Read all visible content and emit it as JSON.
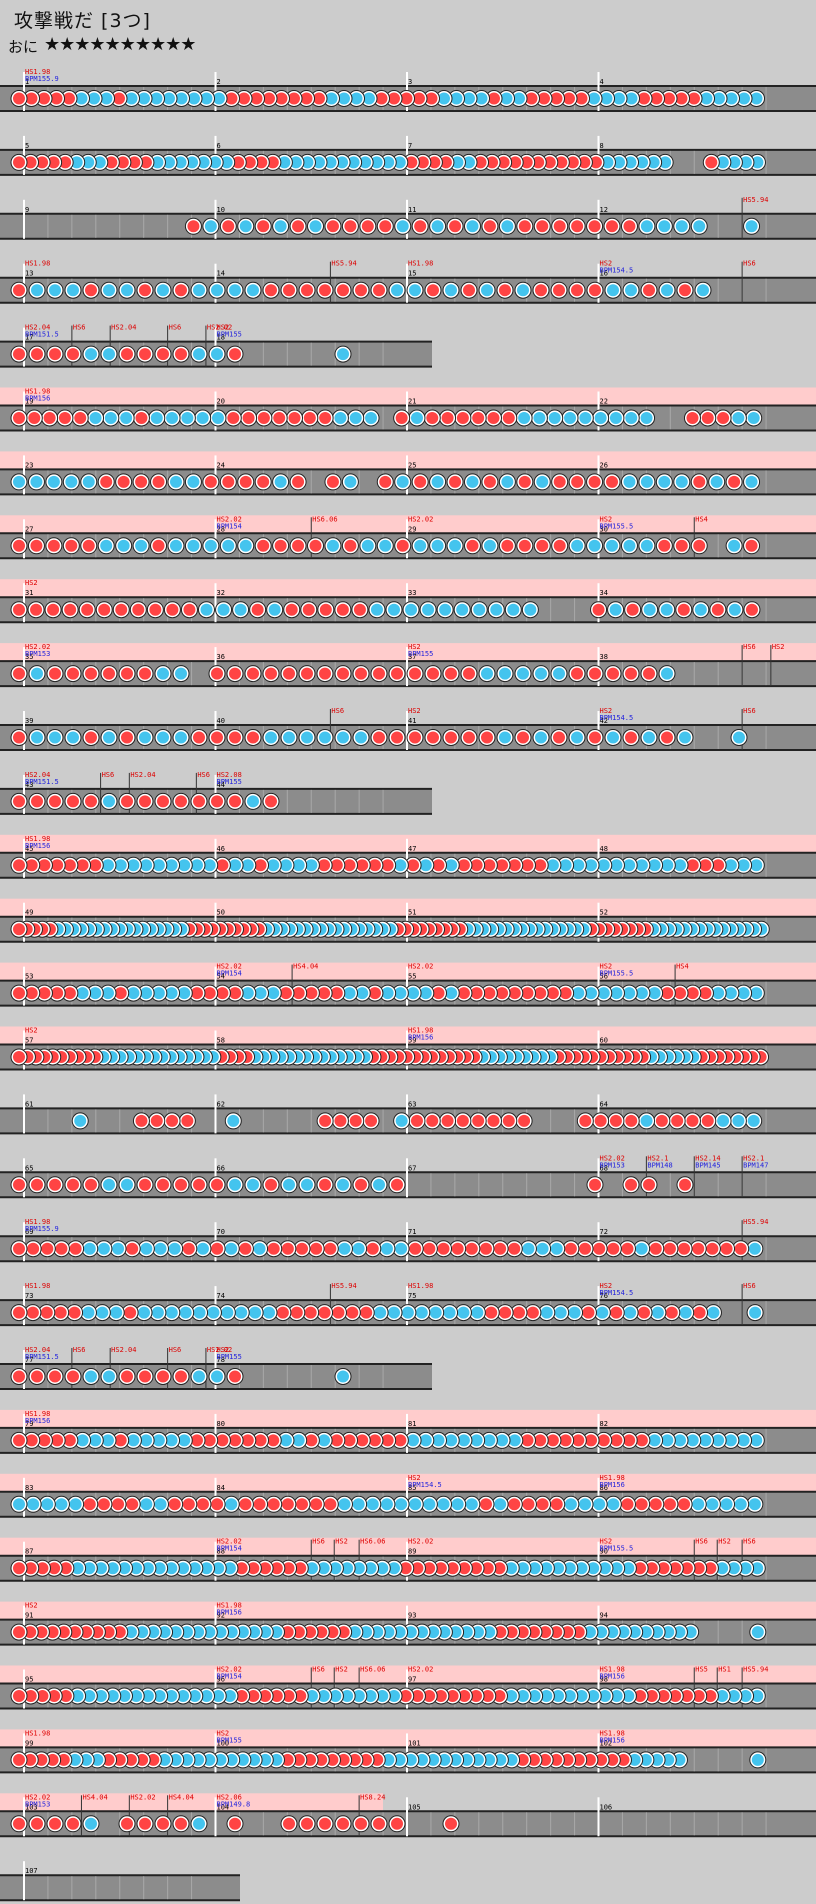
{
  "song": {
    "title": "攻撃戦だ [3つ]",
    "difficulty": "おに",
    "stars": "★★★★★★★★★★"
  },
  "colors": {
    "don": "#ff4444",
    "ka": "#44c4ee",
    "lane": "#8c8c8c",
    "gogo": "#ffcccc",
    "hs_label": "#dd0000",
    "bpm_label": "#2222dd"
  },
  "rows": [
    {
      "type": "full",
      "measures": [
        "1",
        "2",
        "3",
        "4"
      ],
      "gogo": false,
      "labels": [
        {
          "m": 0,
          "hs": "HS1.98",
          "bpm": "BPM155.9"
        }
      ],
      "notes": "DDDDDKKKDKKKKKKKKDDDDDDDDKKKKDDDDDKKKKDKKDDDDDKKKKDDDDDKKKKK"
    },
    {
      "type": "full",
      "measures": [
        "5",
        "6",
        "7",
        "8"
      ],
      "gogo": false,
      "labels": [],
      "notes": "DDDDDKKKDDDDKKKKKKKDDDDKKKKKKKKKKKDDDDKKDDDDDDDDDDDKKKKKK   DKKKK"
    },
    {
      "type": "full",
      "measures": [
        "9",
        "10",
        "11",
        "12"
      ],
      "gogo": false,
      "labels": [
        {
          "m": 3,
          "at": 0.75,
          "hs": "HS5.94"
        }
      ],
      "notes": "          DKDKDKDKDDDDKDKDKDKDDDDDDDKKKK  K"
    },
    {
      "type": "full",
      "measures": [
        "13",
        "14",
        "15",
        "16"
      ],
      "gogo": false,
      "labels": [
        {
          "m": 0,
          "hs": "HS1.98"
        },
        {
          "m": 1,
          "at": 0.6,
          "hs": "HS5.94"
        },
        {
          "m": 2,
          "hs": "HS1.98"
        },
        {
          "m": 3,
          "hs": "HS2",
          "bpm": "BPM154.5"
        },
        {
          "m": 3,
          "at": 0.75,
          "hs": "HS6"
        }
      ],
      "notes": "DKKKDKKDKDKKKKDDDDDDDKKDKDKDKDDDDKKDKDK"
    },
    {
      "type": "short",
      "measures": [
        "17",
        "18"
      ],
      "gogo": false,
      "labels": [
        {
          "m": 0,
          "hs": "HS2.04",
          "bpm": "BPM151.5"
        },
        {
          "m": 0,
          "at": 0.25,
          "hs": "HS6"
        },
        {
          "m": 0,
          "at": 0.45,
          "hs": "HS2.04"
        },
        {
          "m": 0,
          "at": 0.75,
          "hs": "HS6"
        },
        {
          "m": 0,
          "at": 0.95,
          "hs": "HS2.02"
        },
        {
          "m": 1,
          "hs": "HS2",
          "bpm": "BPM155"
        }
      ],
      "notes": "DDDDKKDDDDKKD     K"
    },
    {
      "type": "full",
      "measures": [
        "19",
        "20",
        "21",
        "22"
      ],
      "gogo": true,
      "labels": [
        {
          "m": 0,
          "hs": "HS1.98",
          "bpm": "BPM156"
        }
      ],
      "notes": "DDDDDKKKDKKKKKDDDDDDDKKK DKDDDDDDKKKKKKKKK  DDDKK"
    },
    {
      "type": "full",
      "measures": [
        "23",
        "24",
        "25",
        "26"
      ],
      "gogo": true,
      "labels": [],
      "notes": "KKKKKDDDDKKDDDDKD DK DKDKDKDKDKDDDDKKKKDKDK"
    },
    {
      "type": "full",
      "measures": [
        "27",
        "28",
        "29",
        "30"
      ],
      "gogo": true,
      "labels": [
        {
          "m": 1,
          "hs": "HS2.02",
          "bpm": "BPM154"
        },
        {
          "m": 1,
          "at": 0.5,
          "hs": "HS6.06"
        },
        {
          "m": 2,
          "hs": "HS2.02"
        },
        {
          "m": 3,
          "hs": "HS2",
          "bpm": "BPM155.5"
        },
        {
          "m": 3,
          "at": 0.5,
          "hs": "HS4"
        }
      ],
      "notes": "DDDDDKKKDKKKKKDDDDKDKKDKKKDKDDDDKKKKKDDD KD"
    },
    {
      "type": "full",
      "measures": [
        "31",
        "32",
        "33",
        "34"
      ],
      "gogo": true,
      "labels": [
        {
          "m": 0,
          "hs": "HS2"
        }
      ],
      "notes": "DDDDDDDDDDDKKKDKDDDDDKKKKKKKKKK   DKDKKDKDKD"
    },
    {
      "type": "full",
      "measures": [
        "35",
        "36",
        "37",
        "38"
      ],
      "gogo": true,
      "labels": [
        {
          "m": 0,
          "hs": "HS2.02",
          "bpm": "BPM153"
        },
        {
          "m": 2,
          "hs": "HS2",
          "bpm": "BPM155"
        },
        {
          "m": 3,
          "at": 0.75,
          "hs": "HS6"
        },
        {
          "m": 3,
          "at": 0.9,
          "hs": "HS2"
        }
      ],
      "notes": "DKDDDDDDKK DDDDDDDDDDDDDDDKKKKKDDDDDK"
    },
    {
      "type": "full",
      "measures": [
        "39",
        "40",
        "41",
        "42"
      ],
      "gogo": false,
      "labels": [
        {
          "m": 1,
          "at": 0.6,
          "hs": "HS6"
        },
        {
          "m": 2,
          "hs": "HS2"
        },
        {
          "m": 3,
          "hs": "HS2",
          "bpm": "BPM154.5"
        },
        {
          "m": 3,
          "at": 0.75,
          "hs": "HS6"
        }
      ],
      "notes": "DKKKDKDKKKDDDDKKKKKKDDDDDDDKDKDKDKDKDK  K"
    },
    {
      "type": "short",
      "measures": [
        "43",
        "44"
      ],
      "gogo": false,
      "labels": [
        {
          "m": 0,
          "hs": "HS2.04",
          "bpm": "BPM151.5"
        },
        {
          "m": 0,
          "at": 0.4,
          "hs": "HS6"
        },
        {
          "m": 0,
          "at": 0.55,
          "hs": "HS2.04"
        },
        {
          "m": 0,
          "at": 0.9,
          "hs": "HS6"
        },
        {
          "m": 1,
          "hs": "HS2.08",
          "bpm": "BPM155"
        }
      ],
      "notes": "DDDDDKDDDDDDDKD"
    },
    {
      "type": "full",
      "measures": [
        "45",
        "46",
        "47",
        "48"
      ],
      "gogo": true,
      "labels": [
        {
          "m": 0,
          "hs": "HS1.98",
          "bpm": "BPM156"
        }
      ],
      "notes": "DDDDDDDKKKKKKKKKDKKDKKKKDDDDDDKDKDKDDDDDDDKKKKKKKKKKKDDDKKK"
    },
    {
      "type": "full",
      "measures": [
        "49",
        "50",
        "51",
        "52"
      ],
      "gogo": true,
      "labels": [],
      "notes": "DDDDDKKKKKKKKKKKKKKKKKDDDDDDDDDDKKKKKKKKKKKKKKKKKDDDDDDDDDKKKKKKKKKKKKKKKKDDDDDDDDKKKKKKKKKKKKKKK"
    },
    {
      "type": "full",
      "measures": [
        "53",
        "54",
        "55",
        "56"
      ],
      "gogo": true,
      "labels": [
        {
          "m": 1,
          "hs": "HS2.02",
          "bpm": "BPM154"
        },
        {
          "m": 1,
          "at": 0.4,
          "hs": "HS4.04"
        },
        {
          "m": 2,
          "hs": "HS2.02"
        },
        {
          "m": 3,
          "hs": "HS2",
          "bpm": "BPM155.5"
        },
        {
          "m": 3,
          "at": 0.4,
          "hs": "HS4"
        }
      ],
      "notes": "DDDDDKKKDKKKKKDDDDKKKDDDDDKKDKKKKDKDDDDDDDDDKKKKKKKDDDDKKKK"
    },
    {
      "type": "full",
      "measures": [
        "57",
        "58",
        "59",
        "60"
      ],
      "gogo": true,
      "labels": [
        {
          "m": 0,
          "hs": "HS2"
        },
        {
          "m": 2,
          "hs": "HS1.98",
          "bpm": "BPM156"
        }
      ],
      "notes": "DDDDDDDDDDKKKKKKKKKKKKKKDDDDKKKKKKKKKKKKKKDDDDDDDDDDDDDKKKKKKKKKDDDDDDDDDDDKKKKKKDDDDDDDD"
    },
    {
      "type": "full",
      "measures": [
        "61",
        "62",
        "63",
        "64"
      ],
      "gogo": false,
      "labels": [],
      "notes": "    K   DDDD  K     DDDD KDDDDDDDD   DDDDKDDDDKKK"
    },
    {
      "type": "full",
      "measures": [
        "65",
        "66",
        "67",
        "68"
      ],
      "gogo": false,
      "labels": [
        {
          "m": 3,
          "hs": "HS2.02",
          "bpm": "BPM153"
        },
        {
          "m": 3,
          "at": 0.25,
          "hs": "HS2.1",
          "bpm": "BPM148"
        },
        {
          "m": 3,
          "at": 0.5,
          "hs": "HS2.14",
          "bpm": "BPM145"
        },
        {
          "m": 3,
          "at": 0.75,
          "hs": "HS2.1",
          "bpm": "BPM147"
        }
      ],
      "notes": "DDDDDKKDDDDDKKDKKDKDKD          D DD D"
    },
    {
      "type": "full",
      "measures": [
        "69",
        "70",
        "71",
        "72"
      ],
      "gogo": false,
      "labels": [
        {
          "m": 0,
          "hs": "HS1.98",
          "bpm": "BPM155.9"
        },
        {
          "m": 3,
          "at": 0.75,
          "hs": "HS5.94"
        }
      ],
      "notes": "DDDDDKKKDKKKDKDKDKDDDDDKKDKKDDDDDDDDKKKDDDDDKDDDDDDDK"
    },
    {
      "type": "full",
      "measures": [
        "73",
        "74",
        "75",
        "76"
      ],
      "gogo": false,
      "labels": [
        {
          "m": 0,
          "hs": "HS1.98"
        },
        {
          "m": 1,
          "at": 0.6,
          "hs": "HS5.94"
        },
        {
          "m": 2,
          "hs": "HS1.98"
        },
        {
          "m": 3,
          "hs": "HS2",
          "bpm": "BPM154.5"
        },
        {
          "m": 3,
          "at": 0.75,
          "hs": "HS6"
        }
      ],
      "notes": "DDDDDKKKDKKKKKKKKKKDDDDDDDKKKKKKKKDDDDKKKDKDKDKDKDK  K"
    },
    {
      "type": "short",
      "measures": [
        "77",
        "78"
      ],
      "gogo": false,
      "labels": [
        {
          "m": 0,
          "hs": "HS2.04",
          "bpm": "BPM151.5"
        },
        {
          "m": 0,
          "at": 0.25,
          "hs": "HS6"
        },
        {
          "m": 0,
          "at": 0.45,
          "hs": "HS2.04"
        },
        {
          "m": 0,
          "at": 0.75,
          "hs": "HS6"
        },
        {
          "m": 0,
          "at": 0.95,
          "hs": "HS2.02"
        },
        {
          "m": 1,
          "hs": "HS2",
          "bpm": "BPM155"
        }
      ],
      "notes": "DDDDKKDDDDKKD     K"
    },
    {
      "type": "full",
      "measures": [
        "79",
        "80",
        "81",
        "82"
      ],
      "gogo": true,
      "labels": [
        {
          "m": 0,
          "hs": "HS1.98",
          "bpm": "BPM156"
        }
      ],
      "notes": "DDDDDKKKDKKKKKDDDDDDDKKDKDDDDDDKKKKKKKKKDDDDDDDDDDKKKKKKKKK"
    },
    {
      "type": "full",
      "measures": [
        "83",
        "84",
        "85",
        "86"
      ],
      "gogo": true,
      "labels": [
        {
          "m": 2,
          "hs": "HS2",
          "bpm": "BPM154.5"
        },
        {
          "m": 3,
          "hs": "HS1.98",
          "bpm": "BPM156"
        }
      ],
      "notes": "KKKKKDDDDKKDDDDKDDDDDDDKKKKKKKKKKDKDDDDKKKKDDDDDKKKKK"
    },
    {
      "type": "full",
      "measures": [
        "87",
        "88",
        "89",
        "90"
      ],
      "gogo": true,
      "labels": [
        {
          "m": 1,
          "hs": "HS2.02",
          "bpm": "BPM154"
        },
        {
          "m": 1,
          "at": 0.5,
          "hs": "HS6"
        },
        {
          "m": 1,
          "at": 0.62,
          "hs": "HS2"
        },
        {
          "m": 1,
          "at": 0.75,
          "hs": "HS6.06"
        },
        {
          "m": 2,
          "hs": "HS2.02"
        },
        {
          "m": 3,
          "hs": "HS2",
          "bpm": "BPM155.5"
        },
        {
          "m": 3,
          "at": 0.5,
          "hs": "HS6"
        },
        {
          "m": 3,
          "at": 0.62,
          "hs": "HS2"
        },
        {
          "m": 3,
          "at": 0.75,
          "hs": "HS6"
        }
      ],
      "notes": "DDDDDKKKKKKKKKKKKKKDDDDDDKKKKKKKKDDDDDDDDDKKKKKKKKKKKDDDDDDDKKKK"
    },
    {
      "type": "full",
      "measures": [
        "91",
        "92",
        "93",
        "94"
      ],
      "gogo": true,
      "labels": [
        {
          "m": 0,
          "hs": "HS2"
        },
        {
          "m": 1,
          "hs": "HS1.98",
          "bpm": "BPM156"
        }
      ],
      "notes": "DDDDDDDDDDKKKKKKKKKKKKKKDDDDDDKKKKKKKKKKKKKDDDDDDDDKKKKKKKKKK     K"
    },
    {
      "type": "full",
      "measures": [
        "95",
        "96",
        "97",
        "98"
      ],
      "gogo": true,
      "labels": [
        {
          "m": 1,
          "hs": "HS2.02",
          "bpm": "BPM154"
        },
        {
          "m": 1,
          "at": 0.5,
          "hs": "HS6"
        },
        {
          "m": 1,
          "at": 0.62,
          "hs": "HS2"
        },
        {
          "m": 1,
          "at": 0.75,
          "hs": "HS6.06"
        },
        {
          "m": 2,
          "hs": "HS2.02"
        },
        {
          "m": 3,
          "hs": "HS1.98",
          "bpm": "BPM156"
        },
        {
          "m": 3,
          "at": 0.5,
          "hs": "HS5"
        },
        {
          "m": 3,
          "at": 0.62,
          "hs": "HS1"
        },
        {
          "m": 3,
          "at": 0.75,
          "hs": "HS5.94"
        }
      ],
      "notes": "DDDDDKKKKKKKKKKKKKKDDDDDDKKKKKKKKDDDDDDDDDKKKKKKKKKKKDDDDDDDKKKK"
    },
    {
      "type": "full",
      "measures": [
        "99",
        "100",
        "101",
        "102"
      ],
      "gogo": true,
      "labels": [
        {
          "m": 0,
          "hs": "HS1.98"
        },
        {
          "m": 1,
          "hs": "HS2",
          "bpm": "BPM155"
        },
        {
          "m": 3,
          "hs": "HS1.98",
          "bpm": "BPM156"
        }
      ],
      "notes": "DDDDDKKKDDDDDKKKKKKKKKKKDDDDDDDDDKKKKKKKKKKKKDDDDDDDDDDKKKKK      K"
    },
    {
      "type": "full",
      "measures": [
        "103",
        "104",
        "105",
        "106"
      ],
      "gogo": true,
      "labels": [
        {
          "m": 0,
          "hs": "HS2.02",
          "bpm": "BPM153"
        },
        {
          "m": 0,
          "at": 0.3,
          "hs": "HS4.04"
        },
        {
          "m": 0,
          "at": 0.55,
          "hs": "HS2.02"
        },
        {
          "m": 0,
          "at": 0.75,
          "hs": "HS4.04"
        },
        {
          "m": 1,
          "hs": "HS2.06",
          "bpm": "BPM149.8"
        },
        {
          "m": 1,
          "at": 0.75,
          "hs": "HS8.24"
        }
      ],
      "notes": "DDDDK DDDDK D  DDDDDDD  D",
      "gogo_until": 2
    },
    {
      "type": "end",
      "measures": [
        "107"
      ],
      "gogo": false,
      "labels": [],
      "notes": ""
    }
  ]
}
